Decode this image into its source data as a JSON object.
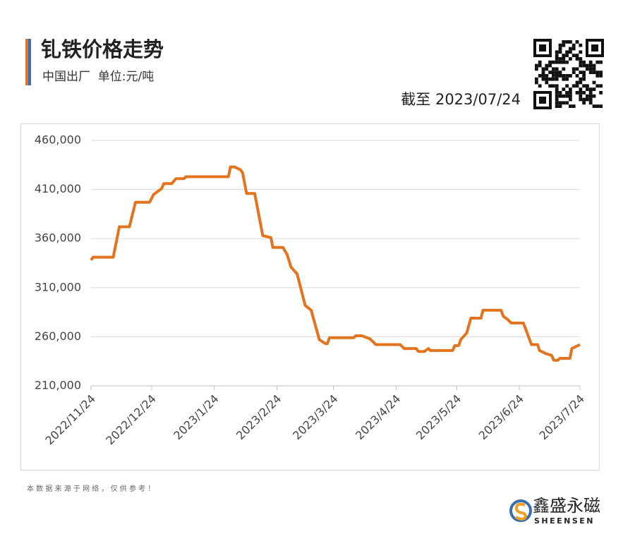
{
  "chart_data": {
    "type": "line",
    "title": "钆铁价格走势",
    "subtitle": "中国出厂  单位:元/吨",
    "as_of": "截至 2023/07/24",
    "source_note": "本 数 据 来 源 于 网 络 ， 仅 供 参 考 ！",
    "brand": "鑫盛永磁",
    "brand_en": "SHEENSEN",
    "x": [
      "2022/11/24",
      "2022/11/25",
      "2022/12/5",
      "2022/12/8",
      "2022/12/13",
      "2022/12/16",
      "2022/12/23",
      "2022/12/25",
      "2022/12/29",
      "2022/12/30",
      "2023/1/3",
      "2023/1/5",
      "2023/1/9",
      "2023/1/10",
      "2023/1/31",
      "2023/2/1",
      "2023/2/3",
      "2023/2/6",
      "2023/2/7",
      "2023/2/9",
      "2023/2/13",
      "2023/2/17",
      "2023/2/21",
      "2023/2/22",
      "2023/2/27",
      "2023/3/1",
      "2023/3/3",
      "2023/3/6",
      "2023/3/10",
      "2023/3/13",
      "2023/3/17",
      "2023/3/20",
      "2023/3/21",
      "2023/3/22",
      "2023/4/3",
      "2023/4/4",
      "2023/4/7",
      "2023/4/11",
      "2023/4/14",
      "2023/4/26",
      "2023/4/28",
      "2023/5/4",
      "2023/5/5",
      "2023/5/8",
      "2023/5/10",
      "2023/5/11",
      "2023/5/22",
      "2023/5/23",
      "2023/5/25",
      "2023/5/26",
      "2023/5/29",
      "2023/5/31",
      "2023/6/5",
      "2023/6/6",
      "2023/6/15",
      "2023/6/16",
      "2023/6/18",
      "2023/6/20",
      "2023/6/26",
      "2023/6/30",
      "2023/7/3",
      "2023/7/4",
      "2023/7/7",
      "2023/7/10",
      "2023/7/11",
      "2023/7/13",
      "2023/7/14",
      "2023/7/19",
      "2023/7/20",
      "2023/7/24"
    ],
    "series": [
      {
        "name": "钆铁",
        "color": "#e3731c",
        "values": [
          338000,
          341000,
          341000,
          372000,
          372000,
          397000,
          397000,
          405000,
          411000,
          416000,
          416000,
          421000,
          421000,
          423000,
          423000,
          433000,
          433000,
          430000,
          427000,
          406000,
          406000,
          363000,
          361000,
          351000,
          351000,
          344000,
          331000,
          324000,
          292000,
          287000,
          257000,
          253000,
          253000,
          259000,
          259000,
          261000,
          261000,
          258000,
          252000,
          252000,
          248000,
          248000,
          245000,
          245000,
          248000,
          246000,
          246000,
          251000,
          251000,
          257000,
          264000,
          279000,
          279000,
          287000,
          287000,
          281000,
          278000,
          274000,
          274000,
          252000,
          252000,
          246000,
          243000,
          241000,
          236000,
          236000,
          238000,
          238000,
          248000,
          252000
        ]
      }
    ],
    "xlim": [
      "2022/11/24",
      "2023/7/24"
    ],
    "xticks": [
      "2022/11/24",
      "2022/12/24",
      "2023/1/24",
      "2023/2/24",
      "2023/3/24",
      "2023/4/24",
      "2023/5/24",
      "2023/6/24",
      "2023/7/24"
    ],
    "ylim": [
      210000,
      460000
    ],
    "yticks": [
      {
        "value": 210000,
        "label": "210,000"
      },
      {
        "value": 260000,
        "label": "260,000"
      },
      {
        "value": 310000,
        "label": "310,000"
      },
      {
        "value": 360000,
        "label": "360,000"
      },
      {
        "value": 410000,
        "label": "410,000"
      },
      {
        "value": 460000,
        "label": "460,000"
      }
    ],
    "grid": true
  }
}
